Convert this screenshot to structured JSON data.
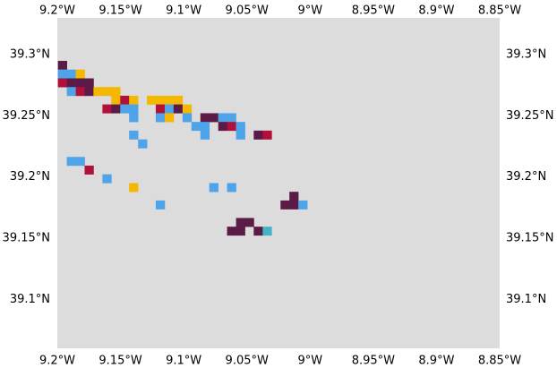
{
  "map": {
    "colors": {
      "background": "#dcdcdc",
      "page": "#ffffff",
      "text": "#000000"
    },
    "extent": {
      "lon_min": -9.2,
      "lon_max": -8.85,
      "lat_min": 39.06,
      "lat_max": 39.33
    },
    "x_ticks": [
      {
        "value": -9.2,
        "label": "9.2°W"
      },
      {
        "value": -9.15,
        "label": "9.15°W"
      },
      {
        "value": -9.1,
        "label": "9.1°W"
      },
      {
        "value": -9.05,
        "label": "9.05°W"
      },
      {
        "value": -9.0,
        "label": "9°W"
      },
      {
        "value": -8.95,
        "label": "8.95°W"
      },
      {
        "value": -8.9,
        "label": "8.9°W"
      },
      {
        "value": -8.85,
        "label": "8.85°W"
      }
    ],
    "y_ticks": [
      {
        "value": 39.3,
        "label": "39.3°N"
      },
      {
        "value": 39.25,
        "label": "39.25°N"
      },
      {
        "value": 39.2,
        "label": "39.2°N"
      },
      {
        "value": 39.15,
        "label": "39.15°N"
      },
      {
        "value": 39.1,
        "label": "39.1°N"
      }
    ],
    "cell_size_deg": {
      "lon": 0.007,
      "lat": 0.007
    },
    "categories": {
      "maroon": "#5c1a47",
      "crimson": "#b0103a",
      "gold": "#f5b800",
      "blue": "#4fa3e8",
      "teal": "#46b2c6"
    },
    "cells": [
      {
        "lon": -9.1995,
        "lat": 39.2879,
        "cat": "maroon"
      },
      {
        "lon": -9.1995,
        "lat": 39.2808,
        "cat": "blue"
      },
      {
        "lon": -9.1925,
        "lat": 39.2808,
        "cat": "blue"
      },
      {
        "lon": -9.1854,
        "lat": 39.2808,
        "cat": "gold"
      },
      {
        "lon": -9.1995,
        "lat": 39.2736,
        "cat": "crimson"
      },
      {
        "lon": -9.1925,
        "lat": 39.2736,
        "cat": "maroon"
      },
      {
        "lon": -9.1854,
        "lat": 39.2736,
        "cat": "maroon"
      },
      {
        "lon": -9.1784,
        "lat": 39.2736,
        "cat": "maroon"
      },
      {
        "lon": -9.1925,
        "lat": 39.2665,
        "cat": "blue"
      },
      {
        "lon": -9.1854,
        "lat": 39.2665,
        "cat": "crimson"
      },
      {
        "lon": -9.1784,
        "lat": 39.2665,
        "cat": "maroon"
      },
      {
        "lon": -9.1714,
        "lat": 39.2665,
        "cat": "gold"
      },
      {
        "lon": -9.1643,
        "lat": 39.2665,
        "cat": "gold"
      },
      {
        "lon": -9.1573,
        "lat": 39.2665,
        "cat": "gold"
      },
      {
        "lon": -9.1573,
        "lat": 39.2594,
        "cat": "gold"
      },
      {
        "lon": -9.1502,
        "lat": 39.2594,
        "cat": "crimson"
      },
      {
        "lon": -9.1432,
        "lat": 39.2594,
        "cat": "gold"
      },
      {
        "lon": -9.1291,
        "lat": 39.2594,
        "cat": "gold"
      },
      {
        "lon": -9.1221,
        "lat": 39.2594,
        "cat": "gold"
      },
      {
        "lon": -9.115,
        "lat": 39.2594,
        "cat": "gold"
      },
      {
        "lon": -9.108,
        "lat": 39.2594,
        "cat": "gold"
      },
      {
        "lon": -9.1643,
        "lat": 39.2523,
        "cat": "crimson"
      },
      {
        "lon": -9.1573,
        "lat": 39.2523,
        "cat": "maroon"
      },
      {
        "lon": -9.1502,
        "lat": 39.2523,
        "cat": "blue"
      },
      {
        "lon": -9.1432,
        "lat": 39.2523,
        "cat": "blue"
      },
      {
        "lon": -9.1221,
        "lat": 39.2523,
        "cat": "crimson"
      },
      {
        "lon": -9.115,
        "lat": 39.2523,
        "cat": "blue"
      },
      {
        "lon": -9.108,
        "lat": 39.2523,
        "cat": "maroon"
      },
      {
        "lon": -9.1009,
        "lat": 39.2523,
        "cat": "gold"
      },
      {
        "lon": -9.1432,
        "lat": 39.2451,
        "cat": "blue"
      },
      {
        "lon": -9.1221,
        "lat": 39.2451,
        "cat": "blue"
      },
      {
        "lon": -9.115,
        "lat": 39.2451,
        "cat": "gold"
      },
      {
        "lon": -9.1009,
        "lat": 39.2451,
        "cat": "blue"
      },
      {
        "lon": -9.0868,
        "lat": 39.2451,
        "cat": "maroon"
      },
      {
        "lon": -9.0798,
        "lat": 39.2451,
        "cat": "maroon"
      },
      {
        "lon": -9.0727,
        "lat": 39.2451,
        "cat": "blue"
      },
      {
        "lon": -9.0657,
        "lat": 39.2451,
        "cat": "blue"
      },
      {
        "lon": -9.0939,
        "lat": 39.238,
        "cat": "blue"
      },
      {
        "lon": -9.0868,
        "lat": 39.238,
        "cat": "blue"
      },
      {
        "lon": -9.0727,
        "lat": 39.238,
        "cat": "maroon"
      },
      {
        "lon": -9.0657,
        "lat": 39.238,
        "cat": "crimson"
      },
      {
        "lon": -9.0586,
        "lat": 39.238,
        "cat": "blue"
      },
      {
        "lon": -9.1432,
        "lat": 39.2309,
        "cat": "blue"
      },
      {
        "lon": -9.0868,
        "lat": 39.2309,
        "cat": "blue"
      },
      {
        "lon": -9.0586,
        "lat": 39.2309,
        "cat": "blue"
      },
      {
        "lon": -9.0446,
        "lat": 39.2309,
        "cat": "maroon"
      },
      {
        "lon": -9.0375,
        "lat": 39.2309,
        "cat": "crimson"
      },
      {
        "lon": -9.1361,
        "lat": 39.2237,
        "cat": "blue"
      },
      {
        "lon": -9.1925,
        "lat": 39.2094,
        "cat": "blue"
      },
      {
        "lon": -9.1854,
        "lat": 39.2094,
        "cat": "blue"
      },
      {
        "lon": -9.1784,
        "lat": 39.2023,
        "cat": "crimson"
      },
      {
        "lon": -9.1643,
        "lat": 39.1952,
        "cat": "blue"
      },
      {
        "lon": -9.1432,
        "lat": 39.188,
        "cat": "gold"
      },
      {
        "lon": -9.0798,
        "lat": 39.188,
        "cat": "blue"
      },
      {
        "lon": -9.0657,
        "lat": 39.188,
        "cat": "blue"
      },
      {
        "lon": -9.0164,
        "lat": 39.1809,
        "cat": "maroon"
      },
      {
        "lon": -9.0234,
        "lat": 39.1738,
        "cat": "maroon"
      },
      {
        "lon": -9.0164,
        "lat": 39.1738,
        "cat": "maroon"
      },
      {
        "lon": -9.0093,
        "lat": 39.1738,
        "cat": "blue"
      },
      {
        "lon": -9.1221,
        "lat": 39.1738,
        "cat": "blue"
      },
      {
        "lon": -9.0586,
        "lat": 39.1595,
        "cat": "maroon"
      },
      {
        "lon": -9.0516,
        "lat": 39.1595,
        "cat": "maroon"
      },
      {
        "lon": -9.0657,
        "lat": 39.1524,
        "cat": "maroon"
      },
      {
        "lon": -9.0586,
        "lat": 39.1524,
        "cat": "maroon"
      },
      {
        "lon": -9.0446,
        "lat": 39.1524,
        "cat": "maroon"
      },
      {
        "lon": -9.0375,
        "lat": 39.1524,
        "cat": "teal"
      }
    ]
  }
}
